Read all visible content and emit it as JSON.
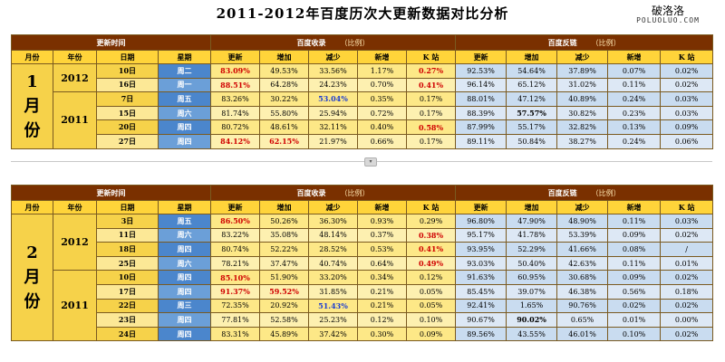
{
  "title": "2011-2012年百度历次大更新数据对比分析",
  "logo": {
    "line1": "破洛洛",
    "line2": "POLUOLUO.COM"
  },
  "group_labels": {
    "time": "更新时间",
    "index": "百度收录",
    "index_sub": "（比例）",
    "backlink": "百度反链",
    "backlink_sub": "（比例）"
  },
  "columns": [
    "月份",
    "年份",
    "日期",
    "星期",
    "更新",
    "增加",
    "减少",
    "新增",
    "K 站",
    "更新",
    "增加",
    "减少",
    "新增",
    "K 站"
  ],
  "separator_icon": "expand-icon",
  "sections": [
    {
      "month": "1月份",
      "years": [
        {
          "year": "2012",
          "rows": [
            {
              "date": "10日",
              "day": "周二",
              "idx": [
                "83.09%",
                "49.53%",
                "33.56%",
                "1.17%",
                "0.27%"
              ],
              "bl": [
                "92.53%",
                "54.64%",
                "37.89%",
                "0.07%",
                "0.02%"
              ],
              "hl": {
                "0": "red",
                "4": "red"
              }
            },
            {
              "date": "16日",
              "day": "周一",
              "idx": [
                "88.51%",
                "64.28%",
                "24.23%",
                "0.70%",
                "0.41%"
              ],
              "bl": [
                "96.14%",
                "65.12%",
                "31.02%",
                "0.11%",
                "0.02%"
              ],
              "hl": {
                "0": "red",
                "4": "red"
              }
            }
          ]
        },
        {
          "year": "2011",
          "rows": [
            {
              "date": "7日",
              "day": "周五",
              "idx": [
                "83.26%",
                "30.22%",
                "53.04%",
                "0.35%",
                "0.17%"
              ],
              "bl": [
                "88.01%",
                "47.12%",
                "40.89%",
                "0.24%",
                "0.03%"
              ],
              "hl": {
                "2": "blue"
              }
            },
            {
              "date": "15日",
              "day": "周六",
              "idx": [
                "81.74%",
                "55.80%",
                "25.94%",
                "0.72%",
                "0.17%"
              ],
              "bl": [
                "88.39%",
                "57.57%",
                "30.82%",
                "0.23%",
                "0.03%"
              ],
              "hlb": {
                "1": "bold"
              }
            },
            {
              "date": "20日",
              "day": "周四",
              "idx": [
                "80.72%",
                "48.61%",
                "32.11%",
                "0.40%",
                "0.58%"
              ],
              "bl": [
                "87.99%",
                "55.17%",
                "32.82%",
                "0.13%",
                "0.09%"
              ],
              "hl": {
                "4": "red"
              }
            },
            {
              "date": "27日",
              "day": "周四",
              "idx": [
                "84.12%",
                "62.15%",
                "21.97%",
                "0.66%",
                "0.17%"
              ],
              "bl": [
                "89.11%",
                "50.84%",
                "38.27%",
                "0.24%",
                "0.06%"
              ],
              "hl": {
                "0": "red",
                "1": "red"
              }
            }
          ]
        }
      ]
    },
    {
      "month": "2月份",
      "years": [
        {
          "year": "2012",
          "rows": [
            {
              "date": "3日",
              "day": "周五",
              "idx": [
                "86.50%",
                "50.26%",
                "36.30%",
                "0.93%",
                "0.29%"
              ],
              "bl": [
                "96.80%",
                "47.90%",
                "48.90%",
                "0.11%",
                "0.03%"
              ],
              "hl": {
                "0": "red"
              }
            },
            {
              "date": "11日",
              "day": "周六",
              "idx": [
                "83.22%",
                "35.08%",
                "48.14%",
                "0.37%",
                "0.38%"
              ],
              "bl": [
                "95.17%",
                "41.78%",
                "53.39%",
                "0.09%",
                "0.02%"
              ],
              "hl": {
                "4": "red"
              }
            },
            {
              "date": "18日",
              "day": "周四",
              "idx": [
                "80.74%",
                "52.22%",
                "28.52%",
                "0.53%",
                "0.41%"
              ],
              "bl": [
                "93.95%",
                "52.29%",
                "41.66%",
                "0.08%",
                "/"
              ],
              "hl": {
                "4": "red"
              }
            },
            {
              "date": "25日",
              "day": "周六",
              "idx": [
                "78.21%",
                "37.47%",
                "40.74%",
                "0.64%",
                "0.49%"
              ],
              "bl": [
                "93.03%",
                "50.40%",
                "42.63%",
                "0.11%",
                "0.01%"
              ],
              "hl": {
                "4": "red"
              }
            }
          ]
        },
        {
          "year": "2011",
          "rows": [
            {
              "date": "10日",
              "day": "周四",
              "idx": [
                "85.10%",
                "51.90%",
                "33.20%",
                "0.34%",
                "0.12%"
              ],
              "bl": [
                "91.63%",
                "60.95%",
                "30.68%",
                "0.09%",
                "0.02%"
              ],
              "hl": {
                "0": "red"
              }
            },
            {
              "date": "17日",
              "day": "周四",
              "idx": [
                "91.37%",
                "59.52%",
                "31.85%",
                "0.21%",
                "0.05%"
              ],
              "bl": [
                "85.45%",
                "39.07%",
                "46.38%",
                "0.56%",
                "0.18%"
              ],
              "hl": {
                "0": "red",
                "1": "red"
              }
            },
            {
              "date": "22日",
              "day": "周三",
              "idx": [
                "72.35%",
                "20.92%",
                "51.43%",
                "0.21%",
                "0.05%"
              ],
              "bl": [
                "92.41%",
                "1.65%",
                "90.76%",
                "0.02%",
                "0.02%"
              ],
              "hl": {
                "2": "blue"
              }
            },
            {
              "date": "23日",
              "day": "周四",
              "idx": [
                "77.81%",
                "52.58%",
                "25.23%",
                "0.12%",
                "0.10%"
              ],
              "bl": [
                "90.67%",
                "90.02%",
                "0.65%",
                "0.01%",
                "0.00%"
              ],
              "hlb": {
                "1": "bold"
              }
            },
            {
              "date": "24日",
              "day": "周四",
              "idx": [
                "83.31%",
                "45.89%",
                "37.42%",
                "0.30%",
                "0.09%"
              ],
              "bl": [
                "89.56%",
                "43.55%",
                "46.01%",
                "0.10%",
                "0.02%"
              ]
            }
          ]
        }
      ]
    }
  ]
}
